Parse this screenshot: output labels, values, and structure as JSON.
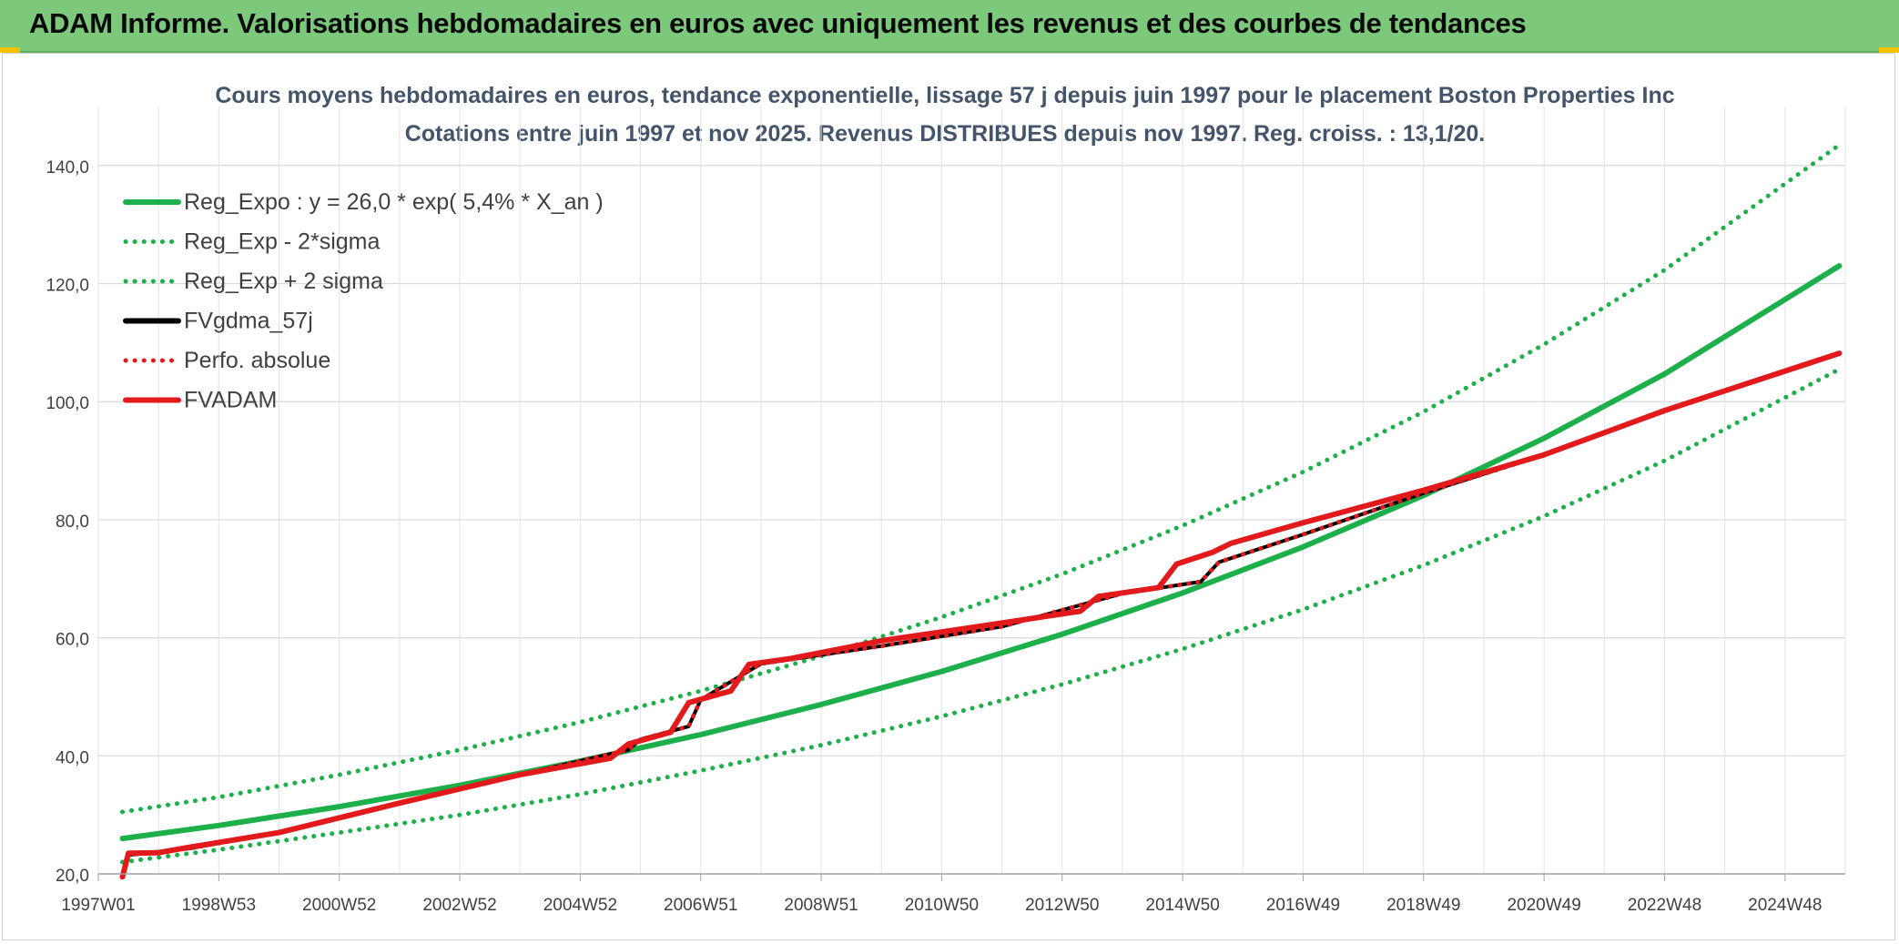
{
  "banner": {
    "title": "ADAM Informe. Valorisations hebdomadaires en euros avec uniquement les revenus et des courbes de tendances"
  },
  "chart_data": {
    "type": "line",
    "title": "Cours moyens hebdomadaires en euros, tendance exponentielle, lissage 57 j depuis juin 1997 pour le placement Boston Properties Inc",
    "subtitle": "Cotations entre juin 1997 et nov 2025. Revenus DISTRIBUES depuis nov 1997. Reg. croiss. : 13,1/20.",
    "xlabel": "",
    "ylabel": "",
    "ylim": [
      20,
      150
    ],
    "y_ticks": [
      20,
      40,
      60,
      80,
      100,
      120,
      140
    ],
    "y_tick_labels": [
      "20,0",
      "40,0",
      "60,0",
      "80,0",
      "100,0",
      "120,0",
      "140,0"
    ],
    "x_tick_labels": [
      "1997W01",
      "1998W53",
      "2000W52",
      "2002W52",
      "2004W52",
      "2006W51",
      "2008W51",
      "2010W50",
      "2012W50",
      "2014W50",
      "2016W49",
      "2018W49",
      "2020W49",
      "2022W48",
      "2024W48"
    ],
    "grid": true,
    "legend_position": "top-left",
    "series": [
      {
        "name": "Reg_Expo : y = 26,0 * exp( 5,4% *  X_an )",
        "color": "#1db04a",
        "style": "solid",
        "x": [
          1997.4,
          1999,
          2001,
          2003,
          2005,
          2007,
          2009,
          2011,
          2013,
          2015,
          2017,
          2019,
          2021,
          2023,
          2025.9
        ],
        "values": [
          26.0,
          28.2,
          31.4,
          35.0,
          39.1,
          43.6,
          48.7,
          54.3,
          60.6,
          67.6,
          75.4,
          84.1,
          93.8,
          104.7,
          123.0
        ]
      },
      {
        "name": "Reg_Exp - 2*sigma",
        "color": "#1db04a",
        "style": "dotted",
        "x": [
          1997.4,
          1999,
          2001,
          2003,
          2005,
          2007,
          2009,
          2011,
          2013,
          2015,
          2017,
          2019,
          2021,
          2023,
          2025.9
        ],
        "values": [
          22.0,
          24.1,
          27.0,
          30.0,
          33.5,
          37.5,
          41.8,
          46.7,
          52.1,
          58.1,
          64.8,
          72.3,
          80.6,
          90.0,
          105.5
        ]
      },
      {
        "name": "Reg_Exp + 2 sigma",
        "color": "#1db04a",
        "style": "dotted",
        "x": [
          1997.4,
          1999,
          2001,
          2003,
          2005,
          2007,
          2009,
          2011,
          2013,
          2015,
          2017,
          2019,
          2021,
          2023,
          2025.9
        ],
        "values": [
          30.5,
          33.0,
          36.8,
          41.0,
          45.7,
          51.0,
          56.9,
          63.5,
          70.8,
          79.0,
          88.1,
          98.3,
          109.7,
          122.3,
          143.5
        ]
      },
      {
        "name": "FVgdma_57j",
        "color": "#000000",
        "style": "solid",
        "x": [
          1997.5,
          1998.5,
          2000,
          2002,
          2004,
          2005.8,
          2006.0,
          2006.8,
          2007.0,
          2008.0,
          2010,
          2012,
          2014,
          2015.3,
          2015.6,
          2017,
          2019,
          2021,
          2023,
          2025.9
        ],
        "values": [
          23.2,
          24.3,
          27.0,
          32.0,
          36.8,
          41.0,
          42.8,
          45.0,
          49.5,
          55.6,
          58.6,
          61.9,
          67.5,
          69.5,
          72.8,
          77.5,
          84.5,
          91.0,
          98.5,
          108.2
        ]
      },
      {
        "name": "Perfo. absolue",
        "color": "#e31a1c",
        "style": "dotted",
        "x": [
          1997.5,
          1998.5,
          2000,
          2002,
          2004,
          2005.8,
          2006.0,
          2006.8,
          2007.0,
          2008.0,
          2010,
          2012,
          2014,
          2015.3,
          2015.6,
          2017,
          2019,
          2021,
          2023,
          2025.9
        ],
        "values": [
          23.2,
          24.3,
          27.0,
          32.0,
          36.8,
          41.0,
          42.8,
          45.0,
          49.5,
          55.6,
          58.6,
          61.9,
          67.5,
          69.5,
          72.8,
          77.5,
          84.5,
          91.0,
          98.5,
          108.2
        ]
      },
      {
        "name": "FVADAM",
        "color": "#e31a1c",
        "style": "solid",
        "x": [
          1997.4,
          1997.5,
          1998.0,
          1998.5,
          2000,
          2002,
          2004,
          2005.5,
          2005.8,
          2006.5,
          2006.8,
          2007.5,
          2007.8,
          2008.5,
          2010,
          2012,
          2013.3,
          2013.6,
          2014.6,
          2014.9,
          2015.5,
          2015.8,
          2017,
          2019,
          2021,
          2023,
          2025.9
        ],
        "values": [
          19.5,
          23.5,
          23.6,
          24.5,
          27.0,
          32.0,
          36.8,
          39.6,
          42.0,
          44.0,
          49.0,
          51.0,
          55.5,
          56.5,
          59.5,
          62.5,
          64.5,
          67.0,
          68.5,
          72.5,
          74.5,
          76.0,
          79.5,
          85.0,
          91.0,
          98.5,
          108.2
        ]
      }
    ]
  }
}
